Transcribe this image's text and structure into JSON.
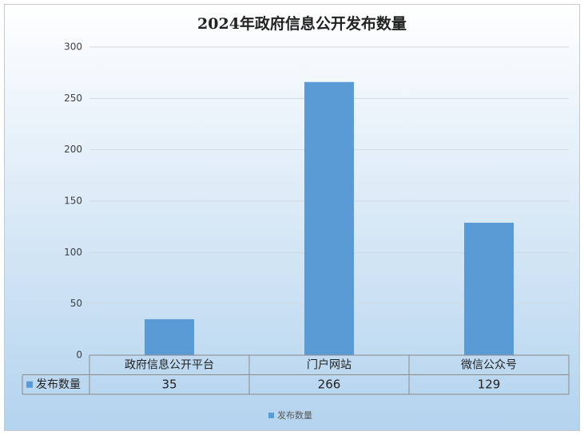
{
  "chart_data": {
    "type": "bar",
    "title": "2024年政府信息公开发布数量",
    "categories": [
      "政府信息公开平台",
      "门户网站",
      "微信公众号"
    ],
    "series": [
      {
        "name": "发布数量",
        "color": "#5b9bd5",
        "values": [
          35,
          266,
          129
        ]
      }
    ],
    "ylim": [
      0,
      300
    ],
    "yticks": [
      0,
      50,
      100,
      150,
      200,
      250,
      300
    ],
    "grid": true,
    "legend": "bottom",
    "data_table": true
  }
}
